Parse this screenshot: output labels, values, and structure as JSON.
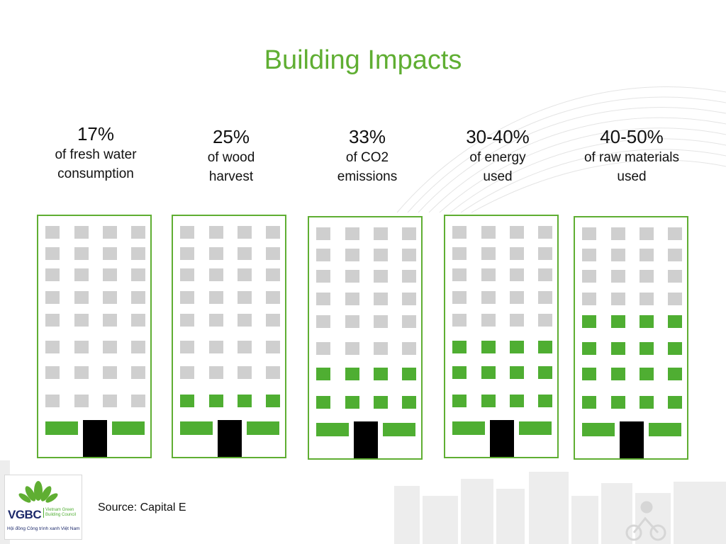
{
  "title": "Building Impacts",
  "colors": {
    "accent": "#5fae32",
    "window_green": "#4fae32",
    "window_gray": "#cfcfcf",
    "door": "#000000",
    "logo_navy": "#1d2a6b"
  },
  "stats": [
    {
      "percent": "17%",
      "line1": "of fresh water",
      "line2": "consumption"
    },
    {
      "percent": "25%",
      "line1": "of wood",
      "line2": "harvest"
    },
    {
      "percent": "33%",
      "line1": "of CO2",
      "line2": "emissions"
    },
    {
      "percent": "30-40%",
      "line1": "of energy",
      "line2": "used"
    },
    {
      "percent": "40-50%",
      "line1": "of raw materials",
      "line2": "used"
    }
  ],
  "buildings": [
    {
      "green_rows": 0
    },
    {
      "green_rows": 1
    },
    {
      "green_rows": 2
    },
    {
      "green_rows": 3
    },
    {
      "green_rows": 4
    }
  ],
  "source": "Source: Capital E",
  "logo": {
    "abbr": "VGBC",
    "full_name": "Vietnam Green Building Council",
    "vietnamese": "Hội đồng Công trình xanh Việt Nam"
  }
}
